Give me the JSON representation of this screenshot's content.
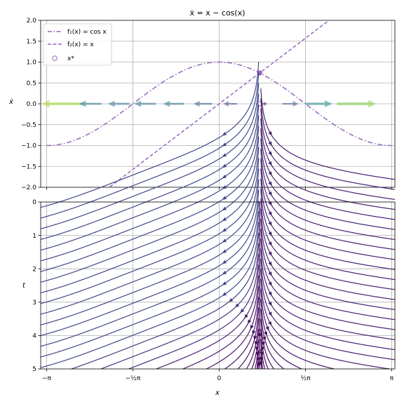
{
  "figure": {
    "title": "ẋ = x − cos(x)"
  },
  "chart_data": [
    {
      "type": "line",
      "title": "ẋ = x − cos(x)",
      "ylabel": "ẋ",
      "xlim": [
        -3.25,
        3.2
      ],
      "ylim": [
        -2.0,
        2.0
      ],
      "yticks": [
        "2.0",
        "1.5",
        "1.0",
        "0.5",
        "0.0",
        "−0.5",
        "−1.0",
        "−1.5",
        "−2.0"
      ],
      "grid": true,
      "legend_position": "top-left",
      "legend": [
        {
          "label": "f₁(x) = cos x",
          "style": "dashdot"
        },
        {
          "label": "f₂(x) = x",
          "style": "dashed"
        },
        {
          "label": "x*",
          "style": "open-circle"
        }
      ],
      "series": [
        {
          "name": "f₁(x) = cos x",
          "function": "cos(x)",
          "x_range": [
            -3.1416,
            3.1416
          ]
        },
        {
          "name": "f₂(x) = x",
          "function": "x",
          "x_range": [
            -3.1416,
            3.1416
          ]
        }
      ],
      "intersection": {
        "x": 0.739,
        "y": 0.739
      },
      "fixed_point": {
        "name": "x*",
        "x": 0.739,
        "y": 0
      },
      "flow_arrows": [
        {
          "x": -2.85,
          "direction": "left",
          "magnitude": 3.55
        },
        {
          "x": -2.35,
          "direction": "left",
          "magnitude": 1.65
        },
        {
          "x": -1.83,
          "direction": "left",
          "magnitude": 1.57
        },
        {
          "x": -1.35,
          "direction": "left",
          "magnitude": 1.57
        },
        {
          "x": -0.83,
          "direction": "left",
          "magnitude": 1.5
        },
        {
          "x": -0.3,
          "direction": "left",
          "magnitude": 1.25
        },
        {
          "x": 0.2,
          "direction": "left",
          "magnitude": 0.78
        },
        {
          "x": 0.82,
          "direction": "right",
          "magnitude": 0.05
        },
        {
          "x": 1.3,
          "direction": "right",
          "magnitude": 1.03
        },
        {
          "x": 1.82,
          "direction": "right",
          "magnitude": 2.07
        },
        {
          "x": 2.5,
          "direction": "right",
          "magnitude": 3.3
        }
      ],
      "colors": {
        "curve": "#9467bd",
        "flow_low": "#440154",
        "flow_mid": "#21918c",
        "flow_high": "#bddf26"
      }
    },
    {
      "type": "streamplot",
      "xlabel": "x",
      "ylabel": "t",
      "xlim": [
        -3.25,
        3.2
      ],
      "ylim": [
        5,
        0
      ],
      "xticks": [
        {
          "value": -3.1416,
          "label": "−π"
        },
        {
          "value": -1.5708,
          "label": "−½π"
        },
        {
          "value": 0,
          "label": "0"
        },
        {
          "value": 1.5708,
          "label": "½π"
        },
        {
          "value": 3.1416,
          "label": "π"
        }
      ],
      "yticks": [
        "0",
        "1",
        "2",
        "3",
        "4",
        "5"
      ],
      "grid": true,
      "ode": "dx/dt = x − cos(x)",
      "fixed_point_x": 0.739,
      "colormap": "viridis"
    }
  ]
}
